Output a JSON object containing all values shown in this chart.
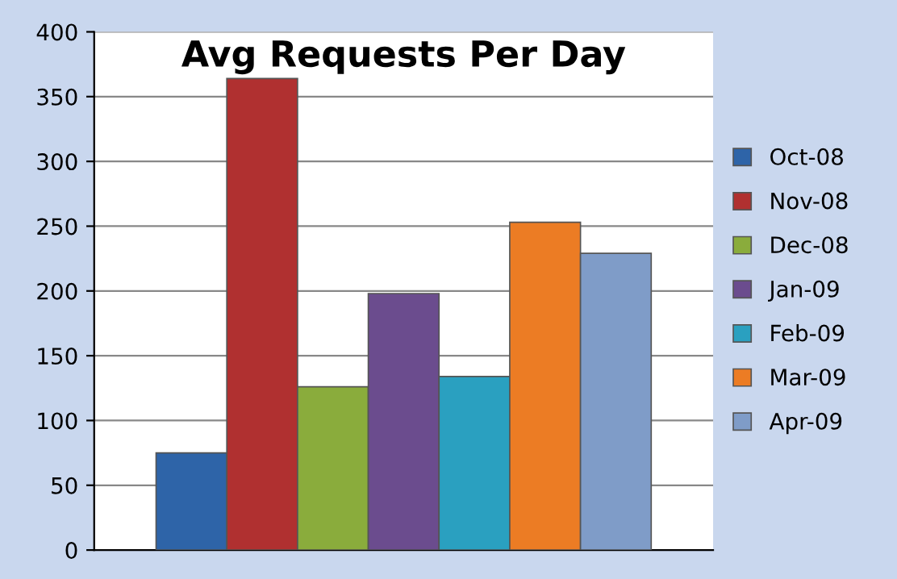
{
  "chart_data": {
    "type": "bar",
    "title": "Avg Requests Per Day",
    "categories": [
      null
    ],
    "series": [
      {
        "name": "Oct-08",
        "color": "#2e64a8",
        "values": [
          75
        ]
      },
      {
        "name": "Nov-08",
        "color": "#b03030",
        "values": [
          364
        ]
      },
      {
        "name": "Dec-08",
        "color": "#8aac3c",
        "values": [
          126
        ]
      },
      {
        "name": "Jan-09",
        "color": "#6b4c8e",
        "values": [
          198
        ]
      },
      {
        "name": "Feb-09",
        "color": "#2aa0c0",
        "values": [
          134
        ]
      },
      {
        "name": "Mar-09",
        "color": "#ec7c24",
        "values": [
          253
        ]
      },
      {
        "name": "Apr-09",
        "color": "#7f9cc8",
        "values": [
          229
        ]
      }
    ],
    "ylim": [
      0,
      400
    ],
    "yticks": [
      0,
      50,
      100,
      150,
      200,
      250,
      300,
      350,
      400
    ],
    "grid": "y",
    "legend": "right"
  }
}
